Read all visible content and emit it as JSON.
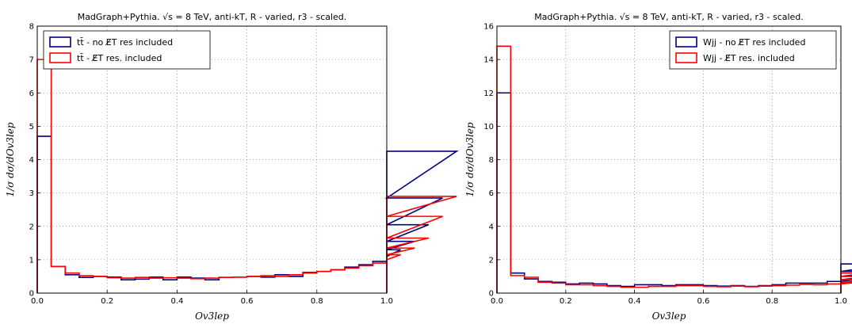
{
  "chart_data": [
    {
      "type": "step",
      "title": "MadGraph+Pythia. √s = 8 TeV, anti-kT, R - varied, r3 - scaled.",
      "xlabel": "Ov3lep",
      "ylabel": "1/σ dσ/dOv3lep",
      "xlim": [
        0,
        1
      ],
      "ylim": [
        0,
        8
      ],
      "xticks": [
        "0.0",
        "0.2",
        "0.4",
        "0.6",
        "0.8",
        "1.0"
      ],
      "yticks": [
        "0",
        "1",
        "2",
        "3",
        "4",
        "5",
        "6",
        "7",
        "8"
      ],
      "bin_width": 0.04,
      "grid": true,
      "legend_position": "top-left",
      "series": [
        {
          "name": "tt̄ - no E̸T res included",
          "color": "#000080",
          "values": [
            4.7,
            0.8,
            0.55,
            0.47,
            0.5,
            0.48,
            0.4,
            0.42,
            0.48,
            0.4,
            0.48,
            0.45,
            0.4,
            0.47,
            0.48,
            0.5,
            0.48,
            0.55,
            0.5,
            0.62,
            0.65,
            0.7,
            0.78,
            0.85,
            0.95,
            1.1,
            1.3,
            1.55,
            2.05,
            2.85,
            4.25
          ]
        },
        {
          "name": "tt̄ - E̸T res. included",
          "color": "#ff0000",
          "values": [
            7.0,
            0.8,
            0.6,
            0.52,
            0.5,
            0.46,
            0.45,
            0.47,
            0.45,
            0.46,
            0.45,
            0.43,
            0.45,
            0.47,
            0.48,
            0.5,
            0.52,
            0.5,
            0.55,
            0.6,
            0.65,
            0.7,
            0.75,
            0.82,
            0.9,
            1.0,
            1.15,
            1.35,
            1.65,
            2.3,
            2.9
          ]
        }
      ]
    },
    {
      "type": "step",
      "title": "MadGraph+Pythia. √s = 8 TeV, anti-kT, R - varied, r3 - scaled.",
      "xlabel": "Ov3lep",
      "ylabel": "1/σ dσ/dOv3lep",
      "xlim": [
        0,
        1
      ],
      "ylim": [
        0,
        16
      ],
      "xticks": [
        "0.0",
        "0.2",
        "0.4",
        "0.6",
        "0.8",
        "1.0"
      ],
      "yticks": [
        "0",
        "2",
        "4",
        "6",
        "8",
        "10",
        "12",
        "14",
        "16"
      ],
      "bin_width": 0.04,
      "grid": true,
      "legend_position": "top-right",
      "series": [
        {
          "name": "Wjj - no E̸T res included",
          "color": "#000080",
          "values": [
            12.0,
            1.2,
            0.85,
            0.7,
            0.65,
            0.55,
            0.6,
            0.55,
            0.45,
            0.4,
            0.5,
            0.5,
            0.45,
            0.5,
            0.5,
            0.45,
            0.42,
            0.45,
            0.4,
            0.45,
            0.5,
            0.6,
            0.6,
            0.6,
            0.7,
            0.7,
            0.8,
            1.0,
            1.3,
            1.75
          ]
        },
        {
          "name": "Wjj - E̸T res. included",
          "color": "#ff0000",
          "values": [
            14.8,
            1.05,
            0.95,
            0.65,
            0.6,
            0.5,
            0.5,
            0.45,
            0.4,
            0.35,
            0.35,
            0.4,
            0.4,
            0.45,
            0.45,
            0.4,
            0.38,
            0.42,
            0.38,
            0.42,
            0.45,
            0.48,
            0.52,
            0.5,
            0.55,
            0.55,
            0.62,
            0.8,
            1.0,
            1.2
          ]
        }
      ]
    }
  ]
}
